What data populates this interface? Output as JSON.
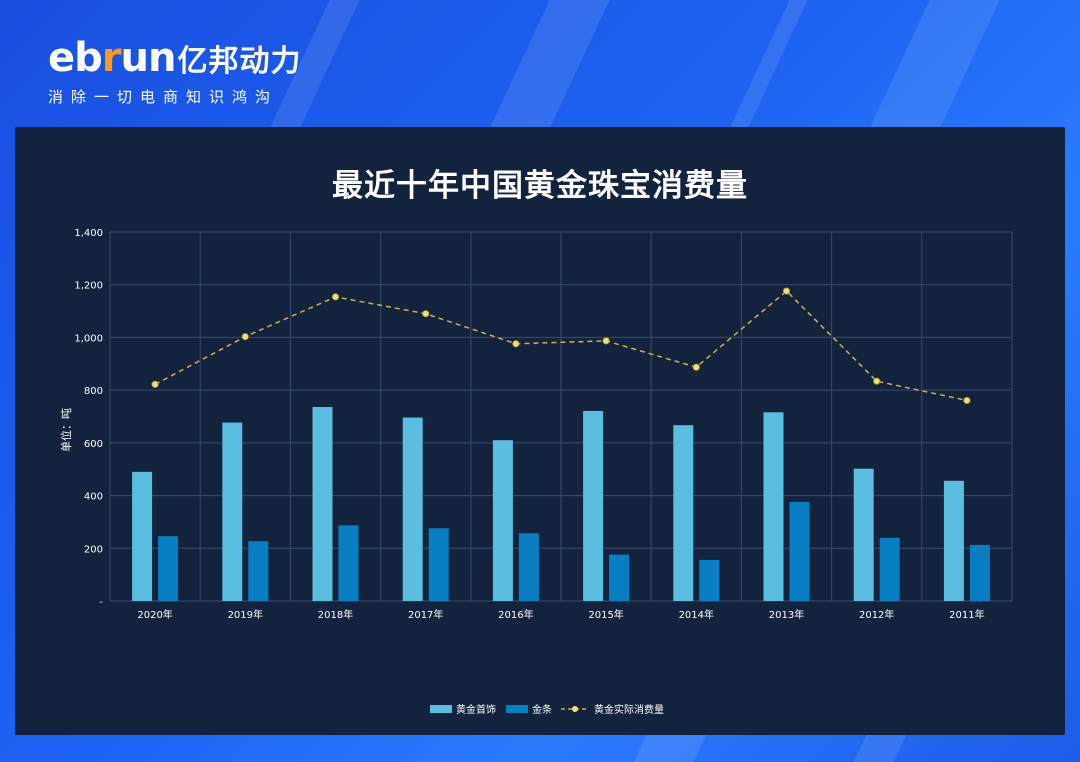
{
  "brand": {
    "logo_prefix": "eb",
    "logo_r": "r",
    "logo_suffix": "un",
    "logo_cn": "亿邦动力",
    "slogan": "消除一切电商知识鸿沟"
  },
  "chart_data": {
    "type": "bar",
    "title": "最近十年中国黄金珠宝消费量",
    "ylabel": "单位：吨",
    "xlabel": "",
    "ylim": [
      0,
      1400
    ],
    "yticks": [
      "-",
      "200",
      "400",
      "600",
      "800",
      "1,000",
      "1,200",
      "1,400"
    ],
    "categories": [
      "2020年",
      "2019年",
      "2018年",
      "2017年",
      "2016年",
      "2015年",
      "2014年",
      "2013年",
      "2012年",
      "2011年"
    ],
    "series": [
      {
        "name": "黄金首饰",
        "type": "bar",
        "color": "#5bbde0",
        "values": [
          490,
          677,
          736,
          696,
          610,
          721,
          667,
          716,
          502,
          456
        ]
      },
      {
        "name": "金条",
        "type": "bar",
        "color": "#0a7ec2",
        "values": [
          246,
          227,
          287,
          276,
          257,
          176,
          156,
          376,
          240,
          213
        ]
      },
      {
        "name": "黄金实际消费量",
        "type": "line",
        "style": "dashed",
        "color": "#c8b450",
        "marker_color": "#f0e07a",
        "values": [
          822,
          1003,
          1154,
          1090,
          976,
          987,
          887,
          1176,
          834,
          761
        ]
      }
    ],
    "grid": true,
    "legend": "bottom-center"
  }
}
